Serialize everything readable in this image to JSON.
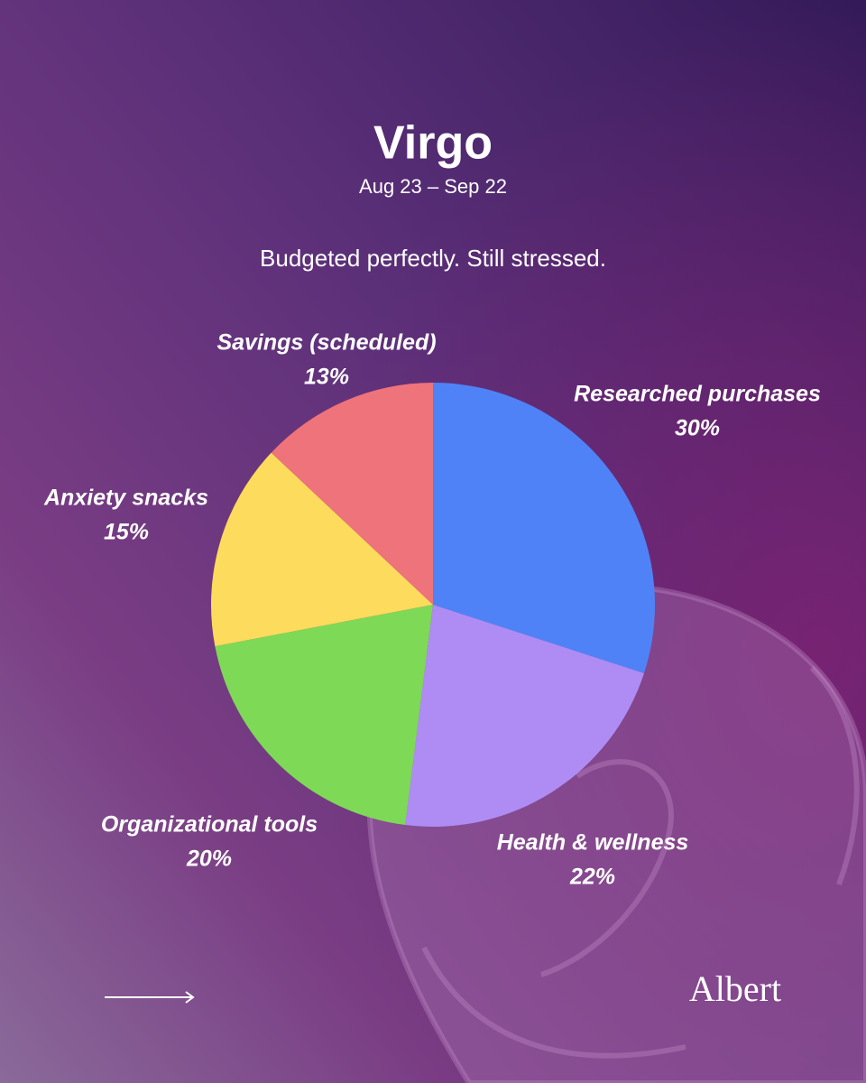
{
  "chart_data": {
    "type": "pie",
    "title": "Virgo",
    "subtitle": "Aug 23 – Sep 22",
    "annotation": "Budgeted perfectly. Still stressed.",
    "categories": [
      "Researched purchases",
      "Health & wellness",
      "Organizational tools",
      "Anxiety snacks",
      "Savings (scheduled)"
    ],
    "values": [
      30,
      22,
      20,
      15,
      13
    ],
    "value_labels": [
      "30%",
      "22%",
      "20%",
      "15%",
      "13%"
    ],
    "colors": [
      "#4f82f7",
      "#ae8cf3",
      "#7ed957",
      "#fddb5c",
      "#ee737a"
    ]
  },
  "footer": {
    "brand": "Albert"
  }
}
